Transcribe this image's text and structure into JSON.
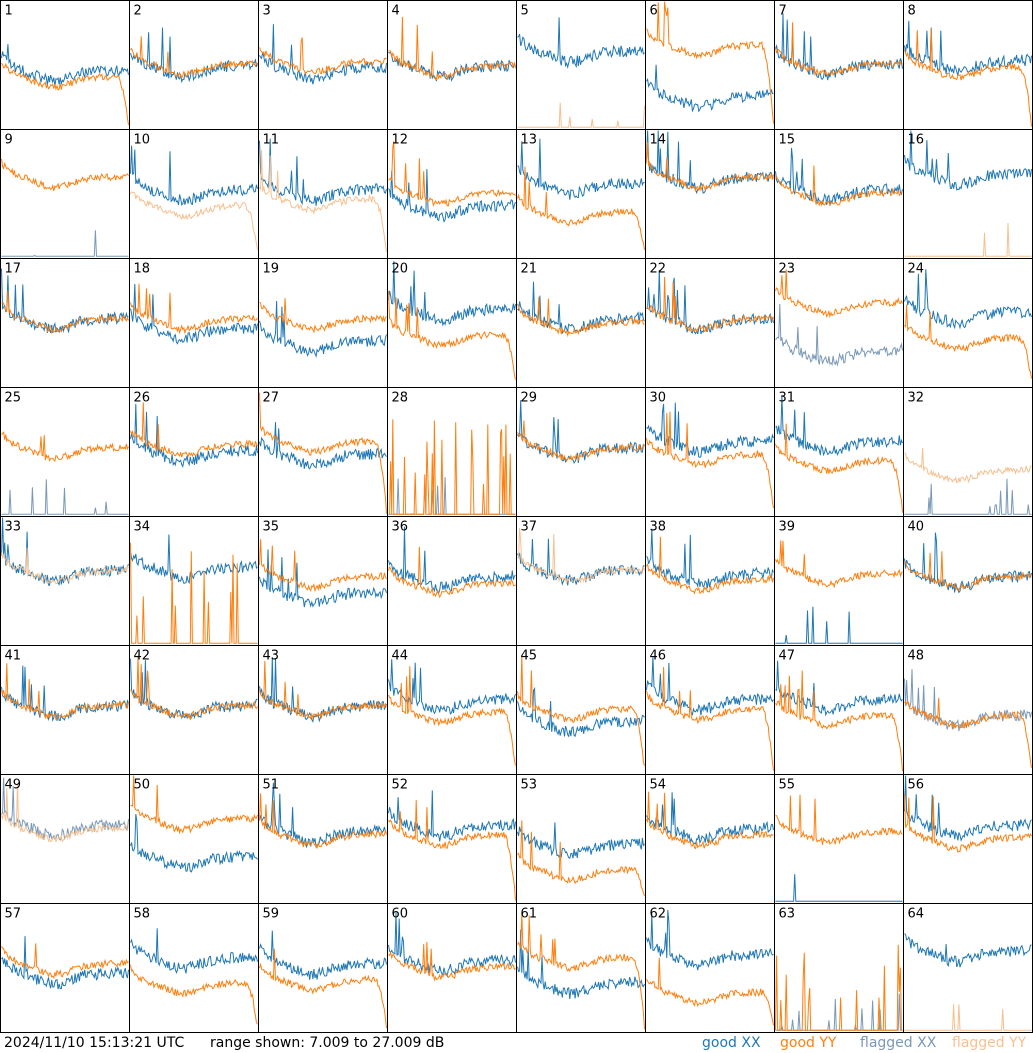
{
  "footer": {
    "timestamp": "2024/11/10 15:13:21 UTC",
    "range_text": "range shown: 7.009 to 27.009 dB"
  },
  "legend": [
    {
      "label": "good XX",
      "color": "#1f77b4"
    },
    {
      "label": "good YY",
      "color": "#ff7f0e"
    },
    {
      "label": "flagged XX",
      "color": "#7a99b8"
    },
    {
      "label": "flagged YY",
      "color": "#f7c08f"
    }
  ],
  "chart_data": {
    "type": "line",
    "panel_count": 64,
    "columns": 8,
    "ylim": [
      7.009,
      27.009
    ],
    "y_unit": "dB",
    "grid": false,
    "legend_placement": "bottom-right",
    "panels": [
      {
        "id": "1",
        "xx": "good",
        "yy": "good",
        "xx_level": 15.5,
        "yy_level": 14.5,
        "yy_profile": "rolloff"
      },
      {
        "id": "2",
        "xx": "good",
        "yy": "good",
        "xx_level": 16.2,
        "yy_level": 16.5,
        "yy_profile": "normal"
      },
      {
        "id": "3",
        "xx": "good",
        "yy": "good",
        "xx_level": 15.8,
        "yy_level": 16.8,
        "yy_profile": "normal"
      },
      {
        "id": "4",
        "xx": "good",
        "yy": "good",
        "xx_level": 16.2,
        "yy_level": 16.2,
        "yy_profile": "normal"
      },
      {
        "id": "5",
        "xx": "good",
        "yy": "flagged",
        "xx_level": 18.5,
        "yy_level": 7.2,
        "yy_profile": "dead"
      },
      {
        "id": "6",
        "xx": "good",
        "yy": "good",
        "xx_level": 11.5,
        "yy_level": 19.5,
        "yy_profile": "rolloff"
      },
      {
        "id": "7",
        "xx": "good",
        "yy": "good",
        "xx_level": 16.5,
        "yy_level": 16.5,
        "yy_profile": "normal"
      },
      {
        "id": "8",
        "xx": "good",
        "yy": "good",
        "xx_level": 17.0,
        "yy_level": 16.0,
        "yy_profile": "rolloff"
      },
      {
        "id": "9",
        "xx": "flagged",
        "yy": "good",
        "xx_level": 8.5,
        "yy_level": 19.0,
        "yy_profile": "normal"
      },
      {
        "id": "10",
        "xx": "good",
        "yy": "flagged",
        "xx_level": 17.0,
        "yy_level": 14.5,
        "yy_profile": "rolloff"
      },
      {
        "id": "11",
        "xx": "good",
        "yy": "flagged",
        "xx_level": 17.0,
        "yy_level": 15.5,
        "yy_profile": "rolloff"
      },
      {
        "id": "12",
        "xx": "good",
        "yy": "good",
        "xx_level": 14.5,
        "yy_level": 16.5,
        "yy_profile": "normal"
      },
      {
        "id": "13",
        "xx": "good",
        "yy": "good",
        "xx_level": 18.0,
        "yy_level": 13.5,
        "yy_profile": "rolloff"
      },
      {
        "id": "14",
        "xx": "good",
        "yy": "good",
        "xx_level": 19.0,
        "yy_level": 19.0,
        "yy_profile": "normal"
      },
      {
        "id": "15",
        "xx": "good",
        "yy": "good",
        "xx_level": 17.0,
        "yy_level": 16.5,
        "yy_profile": "normal"
      },
      {
        "id": "16",
        "xx": "good",
        "yy": "flagged",
        "xx_level": 19.5,
        "yy_level": 7.2,
        "yy_profile": "dead"
      },
      {
        "id": "17",
        "xx": "good",
        "yy": "good",
        "xx_level": 17.0,
        "yy_level": 17.0,
        "yy_profile": "normal"
      },
      {
        "id": "18",
        "xx": "good",
        "yy": "good",
        "xx_level": 15.5,
        "yy_level": 17.0,
        "yy_profile": "normal"
      },
      {
        "id": "19",
        "xx": "good",
        "yy": "good",
        "xx_level": 13.5,
        "yy_level": 17.0,
        "yy_profile": "normal"
      },
      {
        "id": "20",
        "xx": "good",
        "yy": "good",
        "xx_level": 18.5,
        "yy_level": 14.5,
        "yy_profile": "rolloff"
      },
      {
        "id": "21",
        "xx": "good",
        "yy": "good",
        "xx_level": 17.0,
        "yy_level": 16.5,
        "yy_profile": "normal"
      },
      {
        "id": "22",
        "xx": "good",
        "yy": "good",
        "xx_level": 17.0,
        "yy_level": 17.0,
        "yy_profile": "normal"
      },
      {
        "id": "23",
        "xx": "flagged",
        "yy": "good",
        "xx_level": 12.0,
        "yy_level": 19.5,
        "yy_profile": "normal"
      },
      {
        "id": "24",
        "xx": "good",
        "yy": "good",
        "xx_level": 18.0,
        "yy_level": 14.0,
        "yy_profile": "rolloff"
      },
      {
        "id": "25",
        "xx": "flagged",
        "yy": "good",
        "xx_level": 7.2,
        "yy_level": 17.0,
        "yy_profile": "normal"
      },
      {
        "id": "26",
        "xx": "good",
        "yy": "good",
        "xx_level": 16.5,
        "yy_level": 17.5,
        "yy_profile": "normal"
      },
      {
        "id": "27",
        "xx": "good",
        "yy": "good",
        "xx_level": 16.0,
        "yy_level": 18.0,
        "yy_profile": "rolloff"
      },
      {
        "id": "28",
        "xx": "flagged",
        "yy": "good",
        "xx_level": 7.2,
        "yy_level": 7.3,
        "yy_profile": "spiky"
      },
      {
        "id": "29",
        "xx": "good",
        "yy": "good",
        "xx_level": 17.0,
        "yy_level": 17.0,
        "yy_profile": "normal"
      },
      {
        "id": "30",
        "xx": "good",
        "yy": "good",
        "xx_level": 18.0,
        "yy_level": 16.0,
        "yy_profile": "rolloff"
      },
      {
        "id": "31",
        "xx": "good",
        "yy": "good",
        "xx_level": 18.0,
        "yy_level": 15.0,
        "yy_profile": "rolloff"
      },
      {
        "id": "32",
        "xx": "flagged",
        "yy": "flagged",
        "xx_level": 7.2,
        "yy_level": 13.5,
        "yy_profile": "normal"
      },
      {
        "id": "33",
        "xx": "good",
        "yy": "flagged",
        "xx_level": 18.0,
        "yy_level": 18.0,
        "yy_profile": "normal"
      },
      {
        "id": "34",
        "xx": "good",
        "yy": "good",
        "xx_level": 18.5,
        "yy_level": 7.3,
        "yy_profile": "spiky"
      },
      {
        "id": "35",
        "xx": "good",
        "yy": "good",
        "xx_level": 14.5,
        "yy_level": 17.0,
        "yy_profile": "normal"
      },
      {
        "id": "36",
        "xx": "good",
        "yy": "good",
        "xx_level": 17.0,
        "yy_level": 16.0,
        "yy_profile": "normal"
      },
      {
        "id": "37",
        "xx": "good",
        "yy": "flagged",
        "xx_level": 18.0,
        "yy_level": 18.0,
        "yy_profile": "normal"
      },
      {
        "id": "38",
        "xx": "good",
        "yy": "good",
        "xx_level": 17.5,
        "yy_level": 16.5,
        "yy_profile": "normal"
      },
      {
        "id": "39",
        "xx": "good",
        "yy": "good",
        "xx_level": 7.5,
        "yy_level": 17.5,
        "yy_profile": "normal"
      },
      {
        "id": "40",
        "xx": "good",
        "yy": "good",
        "xx_level": 17.0,
        "yy_level": 17.0,
        "yy_profile": "normal"
      },
      {
        "id": "41",
        "xx": "good",
        "yy": "good",
        "xx_level": 17.0,
        "yy_level": 17.0,
        "yy_profile": "normal"
      },
      {
        "id": "42",
        "xx": "good",
        "yy": "good",
        "xx_level": 17.0,
        "yy_level": 17.0,
        "yy_profile": "normal"
      },
      {
        "id": "43",
        "xx": "good",
        "yy": "good",
        "xx_level": 17.0,
        "yy_level": 17.0,
        "yy_profile": "normal"
      },
      {
        "id": "44",
        "xx": "good",
        "yy": "good",
        "xx_level": 18.0,
        "yy_level": 16.0,
        "yy_profile": "rolloff"
      },
      {
        "id": "45",
        "xx": "good",
        "yy": "good",
        "xx_level": 14.5,
        "yy_level": 16.5,
        "yy_profile": "rolloff"
      },
      {
        "id": "46",
        "xx": "good",
        "yy": "good",
        "xx_level": 18.0,
        "yy_level": 16.5,
        "yy_profile": "rolloff"
      },
      {
        "id": "47",
        "xx": "good",
        "yy": "good",
        "xx_level": 18.0,
        "yy_level": 15.5,
        "yy_profile": "rolloff"
      },
      {
        "id": "48",
        "xx": "flagged",
        "yy": "good",
        "xx_level": 15.5,
        "yy_level": 15.5,
        "yy_profile": "rolloff"
      },
      {
        "id": "49",
        "xx": "flagged",
        "yy": "flagged",
        "xx_level": 18.5,
        "yy_level": 18.0,
        "yy_profile": "normal"
      },
      {
        "id": "50",
        "xx": "good",
        "yy": "good",
        "xx_level": 13.5,
        "yy_level": 19.5,
        "yy_profile": "normal"
      },
      {
        "id": "51",
        "xx": "good",
        "yy": "good",
        "xx_level": 17.5,
        "yy_level": 17.0,
        "yy_profile": "normal"
      },
      {
        "id": "52",
        "xx": "good",
        "yy": "good",
        "xx_level": 18.5,
        "yy_level": 17.0,
        "yy_profile": "rolloff"
      },
      {
        "id": "53",
        "xx": "good",
        "yy": "good",
        "xx_level": 15.5,
        "yy_level": 11.5,
        "yy_profile": "rolloff"
      },
      {
        "id": "54",
        "xx": "good",
        "yy": "good",
        "xx_level": 18.0,
        "yy_level": 17.0,
        "yy_profile": "normal"
      },
      {
        "id": "55",
        "xx": "good",
        "yy": "good",
        "xx_level": 7.5,
        "yy_level": 17.5,
        "yy_profile": "normal"
      },
      {
        "id": "56",
        "xx": "good",
        "yy": "good",
        "xx_level": 18.5,
        "yy_level": 16.5,
        "yy_profile": "normal"
      },
      {
        "id": "57",
        "xx": "good",
        "yy": "good",
        "xx_level": 15.5,
        "yy_level": 17.0,
        "yy_profile": "normal"
      },
      {
        "id": "58",
        "xx": "good",
        "yy": "good",
        "xx_level": 18.0,
        "yy_level": 14.0,
        "yy_profile": "rolloff"
      },
      {
        "id": "59",
        "xx": "good",
        "yy": "good",
        "xx_level": 17.0,
        "yy_level": 14.5,
        "yy_profile": "rolloff"
      },
      {
        "id": "60",
        "xx": "good",
        "yy": "good",
        "xx_level": 17.5,
        "yy_level": 16.5,
        "yy_profile": "normal"
      },
      {
        "id": "61",
        "xx": "good",
        "yy": "good",
        "xx_level": 14.0,
        "yy_level": 18.0,
        "yy_profile": "rolloff"
      },
      {
        "id": "62",
        "xx": "good",
        "yy": "good",
        "xx_level": 18.5,
        "yy_level": 12.5,
        "yy_profile": "rolloff"
      },
      {
        "id": "63",
        "xx": "flagged",
        "yy": "good",
        "xx_level": 7.2,
        "yy_level": 7.3,
        "yy_profile": "spiky"
      },
      {
        "id": "64",
        "xx": "good",
        "yy": "flagged",
        "xx_level": 19.0,
        "yy_level": 7.2,
        "yy_profile": "dead"
      }
    ]
  }
}
